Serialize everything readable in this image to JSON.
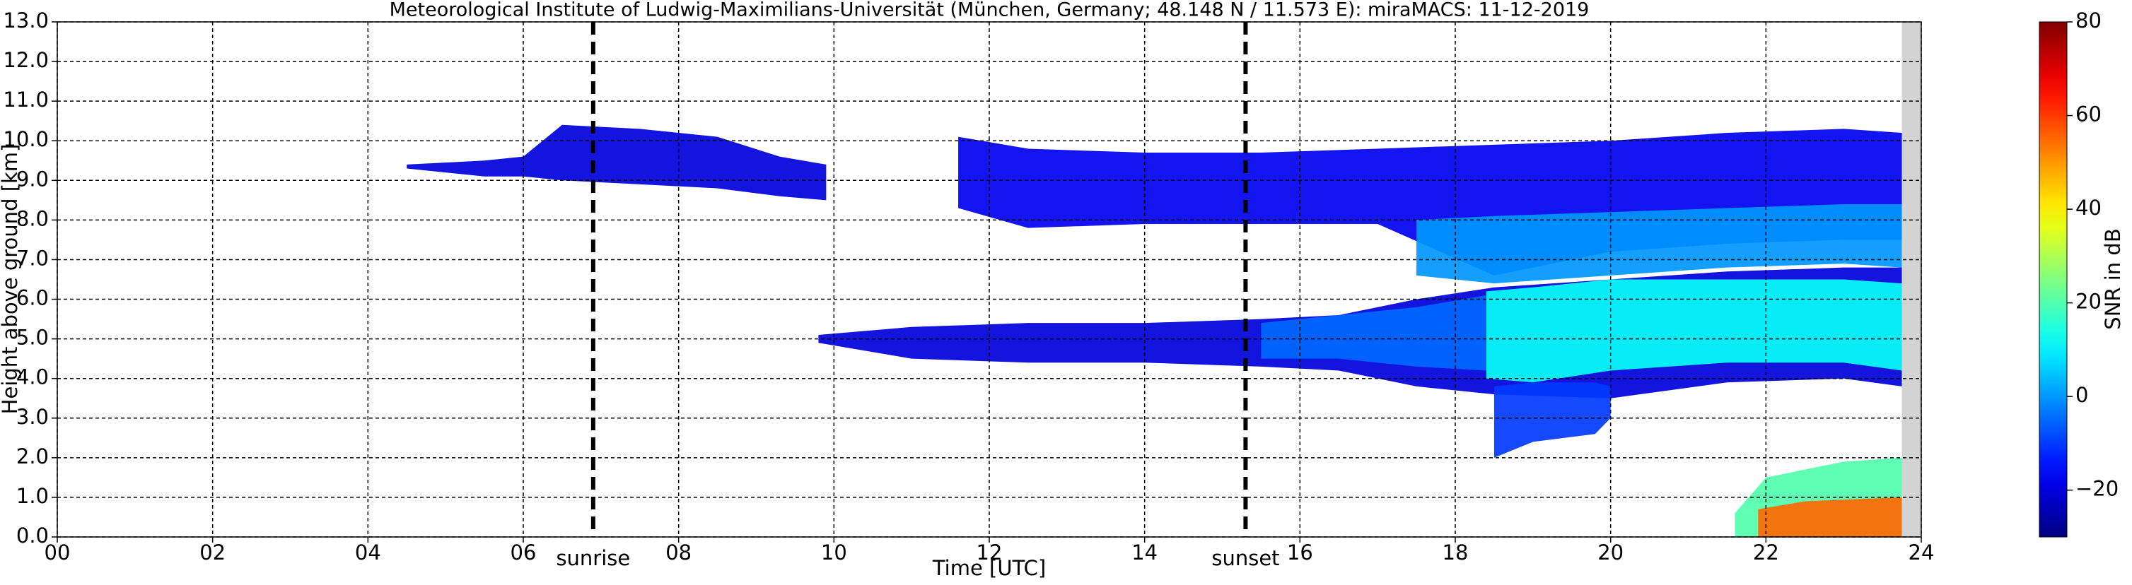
{
  "chart_data": {
    "type": "time-height",
    "title": "Meteorological Institute of Ludwig-Maximilians-Universität (München, Germany; 48.148 N / 11.573 E):    miraMACS: 11-12-2019",
    "x_label": "Time [UTC]",
    "y_label": "Height above ground [km]",
    "xlim": [
      0,
      24
    ],
    "xticks": [
      {
        "value": 0,
        "label": "00"
      },
      {
        "value": 2,
        "label": "02"
      },
      {
        "value": 4,
        "label": "04"
      },
      {
        "value": 6,
        "label": "06"
      },
      {
        "value": 8,
        "label": "08"
      },
      {
        "value": 10,
        "label": "10"
      },
      {
        "value": 12,
        "label": "12"
      },
      {
        "value": 14,
        "label": "14"
      },
      {
        "value": 16,
        "label": "16"
      },
      {
        "value": 18,
        "label": "18"
      },
      {
        "value": 20,
        "label": "20"
      },
      {
        "value": 22,
        "label": "22"
      },
      {
        "value": 24,
        "label": "24"
      }
    ],
    "ylim": [
      0,
      13
    ],
    "yticks": [
      {
        "value": 0,
        "label": "0.0"
      },
      {
        "value": 1,
        "label": "1.0"
      },
      {
        "value": 2,
        "label": "2.0"
      },
      {
        "value": 3,
        "label": "3.0"
      },
      {
        "value": 4,
        "label": "4.0"
      },
      {
        "value": 5,
        "label": "5.0"
      },
      {
        "value": 6,
        "label": "6.0"
      },
      {
        "value": 7,
        "label": "7.0"
      },
      {
        "value": 8,
        "label": "8.0"
      },
      {
        "value": 9,
        "label": "9.0"
      },
      {
        "value": 10,
        "label": "10.0"
      },
      {
        "value": 11,
        "label": "11.0"
      },
      {
        "value": 12,
        "label": "12.0"
      },
      {
        "value": 13,
        "label": "13.0"
      }
    ],
    "grid": true,
    "colormap": "jet",
    "colorbar_label": "SNR in dB",
    "clim": [
      -30,
      80
    ],
    "cticks": [
      {
        "value": -20,
        "label": "−20"
      },
      0,
      20,
      40,
      60,
      80
    ],
    "no_data": [
      23.75,
      24
    ],
    "markers": [
      {
        "text": "sunrise",
        "x": 6.9
      },
      {
        "text": "sunset",
        "x": 15.3
      }
    ],
    "echoes": [
      {
        "time": [
          4.5,
          5.5,
          6.0,
          6.5,
          7.5,
          8.5,
          9.3,
          9.9
        ],
        "top": [
          9.4,
          9.5,
          9.6,
          10.4,
          10.3,
          10.1,
          9.6,
          9.4
        ],
        "base": [
          9.3,
          9.1,
          9.1,
          9.0,
          8.9,
          8.8,
          8.6,
          8.5
        ],
        "snr": -20
      },
      {
        "time": [
          11.6,
          12.5,
          14.0,
          15.5,
          17.0,
          18.5,
          20.0,
          21.5,
          23.0,
          23.75
        ],
        "top": [
          10.1,
          9.8,
          9.7,
          9.7,
          9.8,
          9.9,
          10.0,
          10.2,
          10.3,
          10.2
        ],
        "base": [
          8.3,
          7.8,
          7.9,
          7.9,
          7.9,
          6.6,
          7.2,
          7.4,
          7.5,
          7.5
        ],
        "snr": -18
      },
      {
        "time": [
          17.5,
          18.5,
          20.0,
          21.5,
          23.0,
          23.75
        ],
        "top": [
          8.0,
          8.1,
          8.2,
          8.3,
          8.4,
          8.4
        ],
        "base": [
          6.6,
          6.4,
          6.6,
          6.8,
          6.9,
          6.8
        ],
        "snr": 0
      },
      {
        "time": [
          9.8,
          11.0,
          12.5,
          14.0,
          15.5,
          16.5,
          17.5,
          18.5,
          20.0,
          21.5,
          23.0,
          23.75
        ],
        "top": [
          5.1,
          5.3,
          5.4,
          5.4,
          5.5,
          5.6,
          6.0,
          6.3,
          6.5,
          6.7,
          6.8,
          6.8
        ],
        "base": [
          4.9,
          4.5,
          4.4,
          4.4,
          4.3,
          4.2,
          3.8,
          3.6,
          3.5,
          3.9,
          4.0,
          3.8
        ],
        "snr": -20
      },
      {
        "time": [
          15.5,
          16.5,
          17.5,
          18.4
        ],
        "top": [
          5.4,
          5.6,
          5.8,
          6.1
        ],
        "base": [
          4.5,
          4.5,
          4.3,
          4.2
        ],
        "snr": -5
      },
      {
        "time": [
          18.4,
          19.0,
          20.0,
          21.5,
          23.0,
          23.75
        ],
        "top": [
          6.2,
          6.3,
          6.5,
          6.5,
          6.5,
          6.4
        ],
        "base": [
          4.0,
          3.9,
          4.2,
          4.4,
          4.4,
          4.2
        ],
        "snr": 12
      },
      {
        "time": [
          18.5,
          19.0,
          19.8,
          20.0
        ],
        "top": [
          3.8,
          3.9,
          3.9,
          3.8
        ],
        "base": [
          2.0,
          2.4,
          2.6,
          3.0
        ],
        "snr": -10
      },
      {
        "time": [
          21.6,
          22.0,
          23.0,
          23.75
        ],
        "top": [
          0.6,
          1.5,
          1.9,
          2.0
        ],
        "base": [
          0.0,
          0.0,
          0.0,
          0.0
        ],
        "snr": 20
      },
      {
        "time": [
          21.9,
          22.5,
          23.75
        ],
        "top": [
          0.7,
          0.9,
          1.0
        ],
        "base": [
          0.0,
          0.0,
          0.0
        ],
        "snr": 55
      }
    ]
  }
}
